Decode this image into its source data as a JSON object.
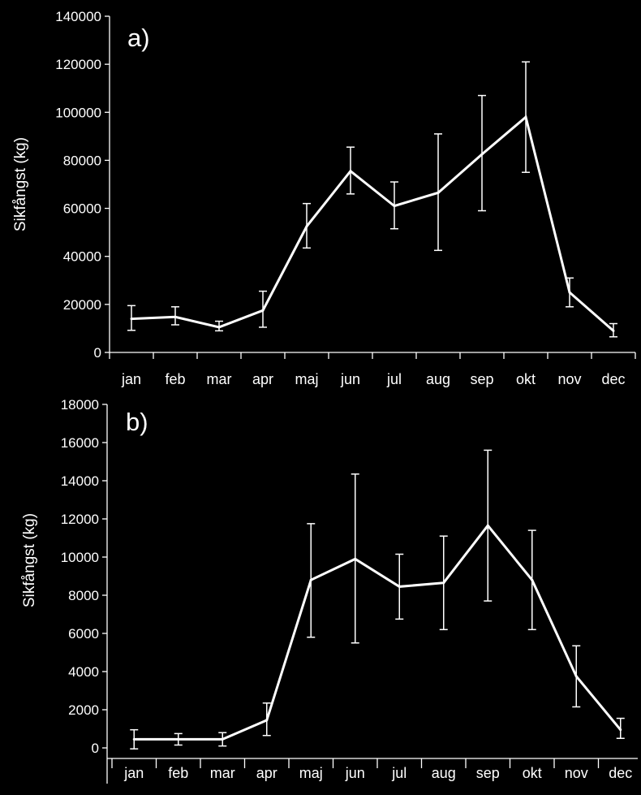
{
  "chart_data": [
    {
      "type": "line",
      "panel_label": "a)",
      "ylabel": "Sikfångst (kg)",
      "ylim": [
        0,
        140000
      ],
      "yticks": [
        "0",
        "20000",
        "40000",
        "60000",
        "80000",
        "100000",
        "120000",
        "140000"
      ],
      "categories": [
        "jan",
        "feb",
        "mar",
        "apr",
        "maj",
        "jun",
        "jul",
        "aug",
        "sep",
        "okt",
        "nov",
        "dec"
      ],
      "values": [
        14000,
        14800,
        10500,
        17500,
        52500,
        75500,
        61000,
        66500,
        82500,
        98000,
        25000,
        9000
      ],
      "error_low": [
        9200,
        11500,
        9000,
        10500,
        43500,
        66000,
        51500,
        42500,
        59000,
        75000,
        19000,
        6500
      ],
      "error_high": [
        19500,
        19000,
        13000,
        25500,
        62000,
        85500,
        71000,
        91000,
        107000,
        121000,
        31000,
        12000
      ],
      "color": "#ffffff"
    },
    {
      "type": "line",
      "panel_label": "b)",
      "ylabel": "Sikfångst (kg)",
      "ylim": [
        0,
        18000
      ],
      "yticks": [
        "0",
        "2000",
        "4000",
        "6000",
        "8000",
        "10000",
        "12000",
        "14000",
        "16000",
        "18000"
      ],
      "categories": [
        "jan",
        "feb",
        "mar",
        "apr",
        "maj",
        "jun",
        "jul",
        "aug",
        "sep",
        "okt",
        "nov",
        "dec"
      ],
      "values": [
        450,
        450,
        450,
        1450,
        8800,
        9900,
        8450,
        8650,
        11650,
        8800,
        3750,
        950
      ],
      "error_low": [
        -50,
        150,
        100,
        650,
        5800,
        5500,
        6750,
        6200,
        7700,
        6200,
        2150,
        500
      ],
      "error_high": [
        950,
        750,
        800,
        2350,
        11750,
        14350,
        10150,
        11100,
        15600,
        11400,
        5350,
        1550
      ],
      "color": "#ffffff"
    }
  ]
}
